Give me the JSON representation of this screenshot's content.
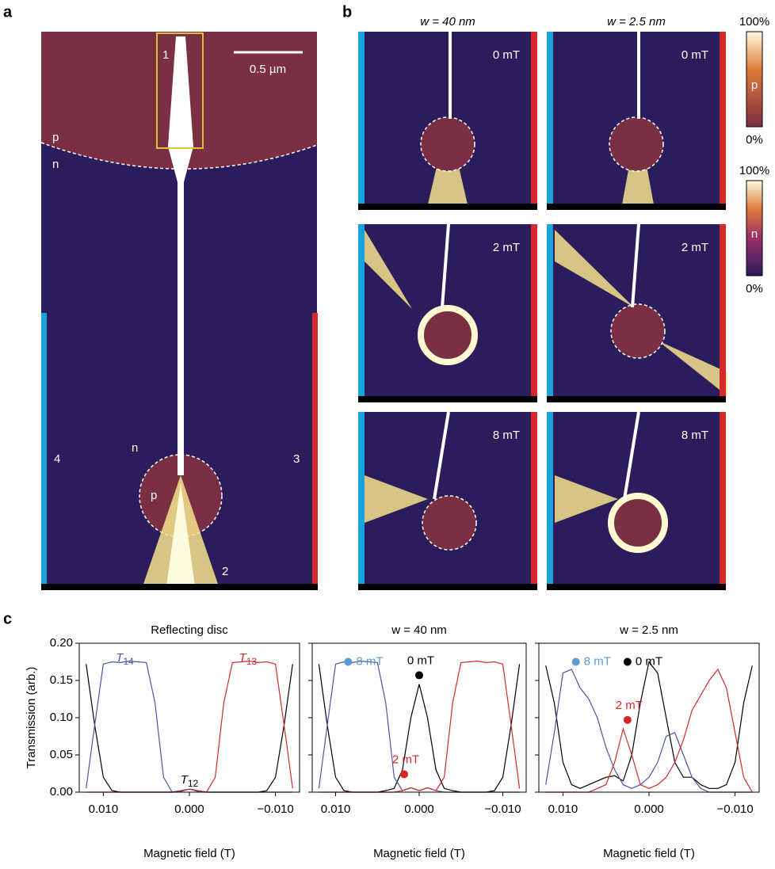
{
  "panel_labels": [
    "a",
    "b",
    "c"
  ],
  "panel_a": {
    "contact_labels": [
      "1",
      "2",
      "3",
      "4"
    ],
    "region_labels": [
      "p",
      "n",
      "n",
      "p"
    ],
    "scale_bar": "0.5 µm"
  },
  "panel_b": {
    "columns": [
      "w = 40 nm",
      "w = 2.5 nm"
    ],
    "fields": [
      [
        "0 mT",
        "0 mT"
      ],
      [
        "2 mT",
        "2 mT"
      ],
      [
        "8 mT",
        "8 mT"
      ]
    ],
    "colorbars": [
      {
        "top": "100%",
        "letter": "p",
        "bottom": "0%"
      },
      {
        "top": "100%",
        "letter": "n",
        "bottom": "0%"
      }
    ]
  },
  "chart_data": [
    {
      "type": "line",
      "title": "Reflecting disc",
      "xlabel": "Magnetic field (T)",
      "ylabel": "Transmission (arb.)",
      "x": [
        0.012,
        0.011,
        0.01,
        0.009,
        0.008,
        0.007,
        0.006,
        0.005,
        0.004,
        0.003,
        0.002,
        0.001,
        0.0,
        -0.001,
        -0.002,
        -0.003,
        -0.004,
        -0.005,
        -0.006,
        -0.007,
        -0.008,
        -0.009,
        -0.01,
        -0.011,
        -0.012
      ],
      "xlim": [
        0.0128,
        -0.0128
      ],
      "ylim": [
        0,
        0.2
      ],
      "xticks": [
        {
          "value": 0.01,
          "label": "0.010"
        },
        {
          "value": 0,
          "label": "0.000"
        },
        {
          "value": -0.01,
          "label": "−0.010"
        }
      ],
      "yticks": [
        {
          "value": 0,
          "label": "0.00"
        },
        {
          "value": 0.05,
          "label": "0.05"
        },
        {
          "value": 0.1,
          "label": "0.10"
        },
        {
          "value": 0.15,
          "label": "0.15"
        },
        {
          "value": 0.2,
          "label": "0.20"
        }
      ],
      "ytick_labels": true,
      "series": [
        {
          "color": "#000000",
          "values": [
            0.172,
            0.09,
            0.02,
            0.002,
            0,
            0,
            0,
            0,
            0,
            0,
            0,
            0.002,
            0.004,
            0.002,
            0,
            0,
            0,
            0,
            0,
            0,
            0,
            0.002,
            0.02,
            0.09,
            0.172
          ]
        },
        {
          "color": "#4a55a8",
          "values": [
            0.005,
            0.09,
            0.172,
            0.175,
            0.174,
            0.176,
            0.175,
            0.174,
            0.12,
            0.02,
            0,
            0.002,
            0.004,
            0.001,
            0,
            0,
            0,
            0,
            0,
            0,
            0,
            0,
            0,
            0,
            0
          ]
        },
        {
          "color": "#d42a2a",
          "values": [
            0,
            0,
            0,
            0,
            0,
            0,
            0,
            0,
            0,
            0,
            0,
            0.001,
            0.004,
            0.002,
            0,
            0.02,
            0.12,
            0.174,
            0.175,
            0.176,
            0.174,
            0.175,
            0.172,
            0.09,
            0.005
          ]
        }
      ],
      "annotations": [
        {
          "text": "T",
          "sub": "14",
          "x": 0.0075,
          "y": 0.18,
          "color": "#4a55a8"
        },
        {
          "text": "T",
          "sub": "13",
          "x": -0.0068,
          "y": 0.18,
          "color": "#d42a2a"
        },
        {
          "text": "T",
          "sub": "12",
          "x": 0.0,
          "y": 0.016,
          "color": "#000000"
        }
      ]
    },
    {
      "type": "line",
      "title": "w = 40 nm",
      "xlabel": "Magnetic field (T)",
      "x": [
        0.012,
        0.011,
        0.01,
        0.009,
        0.008,
        0.007,
        0.006,
        0.005,
        0.004,
        0.003,
        0.002,
        0.001,
        0.0,
        -0.001,
        -0.002,
        -0.003,
        -0.004,
        -0.005,
        -0.006,
        -0.007,
        -0.008,
        -0.009,
        -0.01,
        -0.011,
        -0.012
      ],
      "xlim": [
        0.0128,
        -0.0128
      ],
      "ylim": [
        0,
        0.2
      ],
      "xticks": [
        {
          "value": 0.01,
          "label": "0.010"
        },
        {
          "value": 0,
          "label": "0.000"
        },
        {
          "value": -0.01,
          "label": "−0.010"
        }
      ],
      "yticks": [
        0,
        0.05,
        0.1,
        0.15,
        0.2
      ],
      "ytick_labels": false,
      "series": [
        {
          "color": "#000000",
          "values": [
            0.172,
            0.09,
            0.02,
            0.002,
            0,
            0,
            0,
            0,
            0.002,
            0.005,
            0.03,
            0.1,
            0.145,
            0.1,
            0.03,
            0.005,
            0.002,
            0,
            0,
            0,
            0,
            0.002,
            0.02,
            0.09,
            0.172
          ]
        },
        {
          "color": "#4a55a8",
          "values": [
            0.005,
            0.09,
            0.172,
            0.175,
            0.174,
            0.176,
            0.175,
            0.174,
            0.12,
            0.02,
            0.002,
            0.006,
            0.002,
            0.006,
            0.002,
            0,
            0,
            0,
            0,
            0,
            0,
            0,
            0,
            0,
            0
          ]
        },
        {
          "color": "#d42a2a",
          "values": [
            0,
            0,
            0,
            0,
            0,
            0,
            0,
            0,
            0,
            0,
            0.002,
            0.006,
            0.002,
            0.006,
            0.002,
            0.02,
            0.12,
            0.174,
            0.175,
            0.176,
            0.174,
            0.175,
            0.172,
            0.09,
            0.005
          ]
        }
      ],
      "markers": [
        {
          "label": "8 mT",
          "x": 0.0085,
          "y": 0.175,
          "color": "#5b9bd5"
        },
        {
          "label": "0 mT",
          "x": 0.0,
          "y": 0.157,
          "color": "#000000"
        },
        {
          "label": "2 mT",
          "x": 0.0018,
          "y": 0.024,
          "color": "#d62728"
        }
      ]
    },
    {
      "type": "line",
      "title": "w = 2.5 nm",
      "xlabel": "Magnetic field (T)",
      "x": [
        0.012,
        0.011,
        0.01,
        0.009,
        0.008,
        0.007,
        0.006,
        0.005,
        0.004,
        0.003,
        0.002,
        0.001,
        0.0,
        -0.001,
        -0.002,
        -0.003,
        -0.004,
        -0.005,
        -0.006,
        -0.007,
        -0.008,
        -0.009,
        -0.01,
        -0.011,
        -0.012
      ],
      "xlim": [
        0.0128,
        -0.0128
      ],
      "ylim": [
        0,
        0.2
      ],
      "xticks": [
        {
          "value": 0.01,
          "label": "0.010"
        },
        {
          "value": 0,
          "label": "0.000"
        },
        {
          "value": -0.01,
          "label": "−0.010"
        }
      ],
      "yticks": [
        0,
        0.05,
        0.1,
        0.15,
        0.2
      ],
      "ytick_labels": false,
      "series": [
        {
          "color": "#000000",
          "values": [
            0.17,
            0.12,
            0.04,
            0.01,
            0.005,
            0.01,
            0.015,
            0.02,
            0.022,
            0.015,
            0.05,
            0.12,
            0.175,
            0.16,
            0.1,
            0.04,
            0.02,
            0.02,
            0.01,
            0.005,
            0.005,
            0.01,
            0.04,
            0.12,
            0.17
          ]
        },
        {
          "color": "#4a55a8",
          "values": [
            0.01,
            0.08,
            0.16,
            0.165,
            0.14,
            0.125,
            0.1,
            0.06,
            0.03,
            0.01,
            0.005,
            0.01,
            0.02,
            0.04,
            0.075,
            0.08,
            0.05,
            0.02,
            0.005,
            0,
            0,
            0,
            0,
            0,
            0
          ]
        },
        {
          "color": "#d42a2a",
          "values": [
            0,
            0,
            0,
            0,
            0,
            0,
            0.005,
            0.01,
            0.04,
            0.085,
            0.05,
            0.01,
            0.005,
            0.01,
            0.02,
            0.04,
            0.07,
            0.11,
            0.13,
            0.15,
            0.165,
            0.14,
            0.08,
            0.02,
            0
          ]
        }
      ],
      "markers": [
        {
          "label": "8 mT",
          "x": 0.0085,
          "y": 0.175,
          "color": "#5b9bd5"
        },
        {
          "label": "0 mT",
          "x": 0.0025,
          "y": 0.175,
          "color": "#000000"
        },
        {
          "label": "2 mT",
          "x": 0.0025,
          "y": 0.097,
          "color": "#d62728"
        }
      ]
    }
  ]
}
